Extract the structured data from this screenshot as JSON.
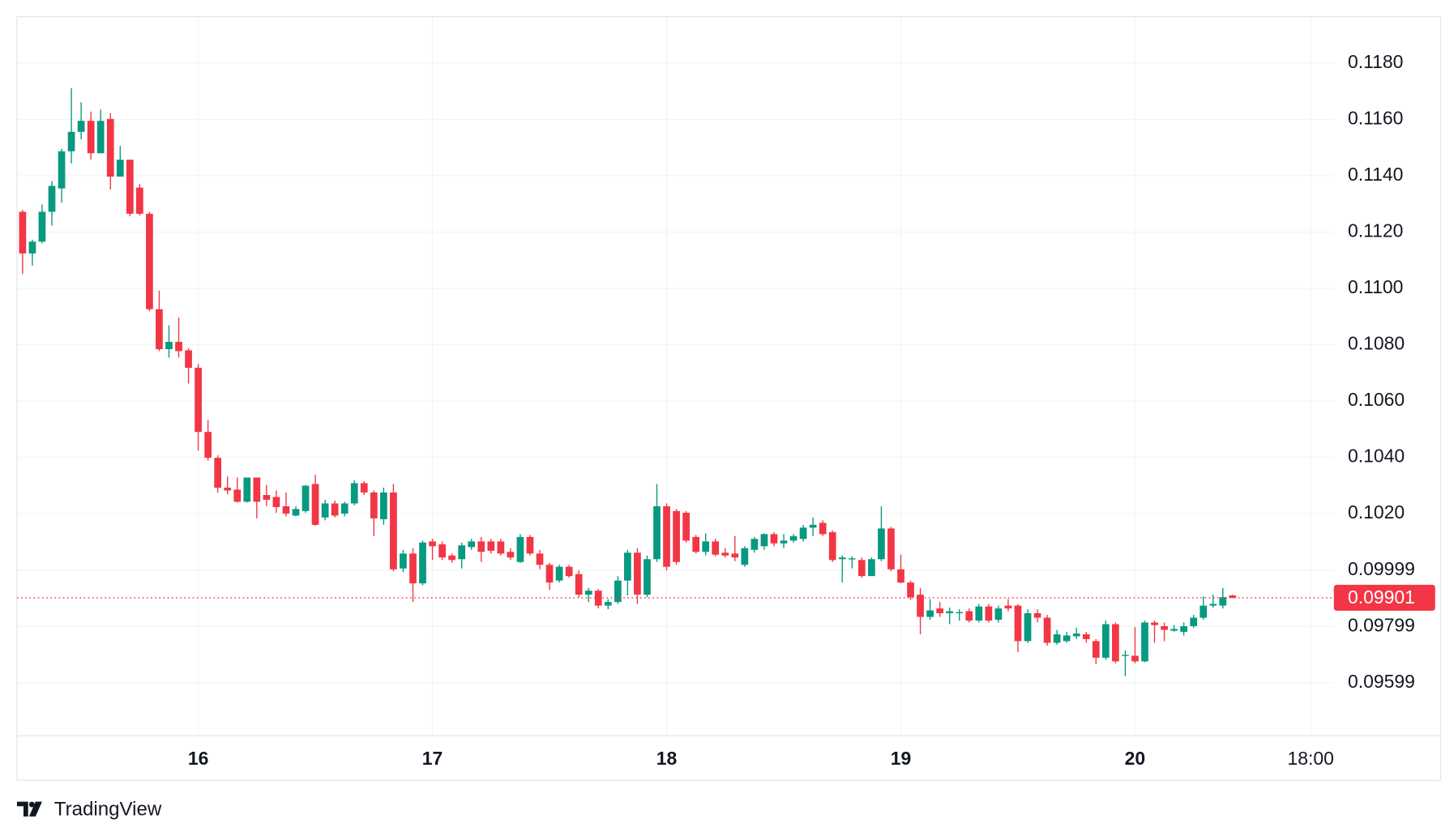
{
  "chart_data": {
    "type": "candlestick",
    "up_color": "#089981",
    "down_color": "#f23645",
    "x": [
      15.25,
      15.2917,
      15.3333,
      15.375,
      15.4167,
      15.4583,
      15.5,
      15.5417,
      15.5833,
      15.625,
      15.6667,
      15.7083,
      15.75,
      15.7917,
      15.8333,
      15.875,
      15.9167,
      15.9583,
      16,
      16.0417,
      16.0833,
      16.125,
      16.1667,
      16.2083,
      16.25,
      16.2917,
      16.3333,
      16.375,
      16.4167,
      16.4583,
      16.5,
      16.5417,
      16.5833,
      16.625,
      16.6667,
      16.7083,
      16.75,
      16.7917,
      16.8333,
      16.875,
      16.9167,
      16.9583,
      17,
      17.0417,
      17.0833,
      17.125,
      17.1667,
      17.2083,
      17.25,
      17.2917,
      17.3333,
      17.375,
      17.4167,
      17.4583,
      17.5,
      17.5417,
      17.5833,
      17.625,
      17.6667,
      17.7083,
      17.75,
      17.7917,
      17.8333,
      17.875,
      17.9167,
      17.9583,
      18,
      18.0417,
      18.0833,
      18.125,
      18.1667,
      18.2083,
      18.25,
      18.2917,
      18.3333,
      18.375,
      18.4167,
      18.4583,
      18.5,
      18.5417,
      18.5833,
      18.625,
      18.6667,
      18.7083,
      18.75,
      18.7917,
      18.8333,
      18.875,
      18.9167,
      18.9583,
      19,
      19.0417,
      19.0833,
      19.125,
      19.1667,
      19.2083,
      19.25,
      19.2917,
      19.3333,
      19.375,
      19.4167,
      19.4583,
      19.5,
      19.5417,
      19.5833,
      19.625,
      19.6667,
      19.7083,
      19.75,
      19.7917,
      19.8333,
      19.875,
      19.9167,
      19.9583,
      20,
      20.0417,
      20.0833,
      20.125,
      20.1667,
      20.2083,
      20.25,
      20.2917,
      20.3333,
      20.375,
      20.4167
    ],
    "open": [
      0.11272,
      0.11124,
      0.11166,
      0.11272,
      0.11355,
      0.11487,
      0.11556,
      0.11595,
      0.1148,
      0.11602,
      0.11397,
      0.11457,
      0.11358,
      0.11265,
      0.10926,
      0.10784,
      0.1081,
      0.1078,
      0.10718,
      0.1049,
      0.10398,
      0.10292,
      0.10285,
      0.10242,
      0.10328,
      0.10266,
      0.10259,
      0.10226,
      0.10193,
      0.10209,
      0.10305,
      0.10186,
      0.10236,
      0.102,
      0.10236,
      0.10308,
      0.10275,
      0.1018,
      0.10275,
      0.10005,
      0.10058,
      0.09952,
      0.10101,
      0.10091,
      0.10051,
      0.10038,
      0.10081,
      0.10101,
      0.10101,
      0.10101,
      0.10064,
      0.10028,
      0.10117,
      0.10058,
      0.10018,
      0.09962,
      0.10011,
      0.09985,
      0.09912,
      0.09926,
      0.09873,
      0.09886,
      0.09962,
      0.10061,
      0.09912,
      0.10038,
      0.10226,
      0.10209,
      0.10203,
      0.10117,
      0.10064,
      0.10101,
      0.10061,
      0.10058,
      0.10018,
      0.10071,
      0.10084,
      0.10127,
      0.10094,
      0.10104,
      0.1011,
      0.1015,
      0.10167,
      0.10134,
      0.10038,
      0.10038,
      0.10035,
      0.09978,
      0.10038,
      0.10147,
      0.10002,
      0.09955,
      0.09912,
      0.09833,
      0.09863,
      0.09846,
      0.09846,
      0.09853,
      0.0982,
      0.0987,
      0.09823,
      0.09873,
      0.09873,
      0.09747,
      0.09846,
      0.0983,
      0.09741,
      0.09747,
      0.09764,
      0.09771,
      0.09747,
      0.09688,
      0.09807,
      0.09695,
      0.09695,
      0.09675,
      0.09813,
      0.098,
      0.09784,
      0.0978,
      0.098,
      0.0983,
      0.09873,
      0.09873,
      0.09909
    ],
    "high": [
      0.11279,
      0.11173,
      0.11298,
      0.11381,
      0.11496,
      0.11711,
      0.11661,
      0.11628,
      0.11635,
      0.11622,
      0.11506,
      0.11457,
      0.11371,
      0.11272,
      0.10992,
      0.10869,
      0.10896,
      0.10787,
      0.10731,
      0.10533,
      0.10407,
      0.10332,
      0.10328,
      0.10328,
      0.10328,
      0.10302,
      0.10282,
      0.10275,
      0.10226,
      0.10302,
      0.10338,
      0.10249,
      0.10246,
      0.10242,
      0.10318,
      0.10315,
      0.10282,
      0.10292,
      0.10305,
      0.10071,
      0.10077,
      0.10104,
      0.1011,
      0.10101,
      0.10058,
      0.10097,
      0.1011,
      0.10117,
      0.1011,
      0.1011,
      0.10077,
      0.10127,
      0.10124,
      0.10071,
      0.10025,
      0.10018,
      0.10018,
      0.09998,
      0.09936,
      0.09932,
      0.09896,
      0.09978,
      0.10071,
      0.10077,
      0.10051,
      0.10305,
      0.10236,
      0.10216,
      0.10209,
      0.10124,
      0.1013,
      0.1011,
      0.10077,
      0.1012,
      0.10084,
      0.10117,
      0.1013,
      0.10134,
      0.10127,
      0.10127,
      0.1016,
      0.10186,
      0.10176,
      0.1014,
      0.10051,
      0.10048,
      0.10044,
      0.10044,
      0.10226,
      0.10153,
      0.10054,
      0.09962,
      0.09936,
      0.09896,
      0.09886,
      0.09866,
      0.0986,
      0.09863,
      0.09879,
      0.09879,
      0.09873,
      0.09896,
      0.09879,
      0.0986,
      0.0986,
      0.0984,
      0.09787,
      0.0978,
      0.09794,
      0.0978,
      0.09754,
      0.0982,
      0.09813,
      0.09714,
      0.09797,
      0.0982,
      0.0982,
      0.09813,
      0.09804,
      0.09813,
      0.0984,
      0.09906,
      0.09912,
      0.09936,
      0.09912
    ],
    "low": [
      0.11051,
      0.11081,
      0.1116,
      0.11223,
      0.11305,
      0.11444,
      0.11529,
      0.11457,
      0.1148,
      0.11351,
      0.11397,
      0.11256,
      0.11259,
      0.10919,
      0.10777,
      0.10754,
      0.10754,
      0.10662,
      0.10424,
      0.10388,
      0.10275,
      0.10269,
      0.10239,
      0.10239,
      0.10183,
      0.10226,
      0.10203,
      0.1019,
      0.1019,
      0.10203,
      0.10157,
      0.10176,
      0.10186,
      0.1019,
      0.10229,
      0.10266,
      0.1012,
      0.1016,
      0.09995,
      0.09992,
      0.09886,
      0.09945,
      0.10035,
      0.10035,
      0.10025,
      0.10005,
      0.10071,
      0.10028,
      0.10058,
      0.10051,
      0.10035,
      0.10025,
      0.10051,
      0.10002,
      0.09929,
      0.09955,
      0.09972,
      0.09903,
      0.09886,
      0.09863,
      0.0986,
      0.09879,
      0.09909,
      0.09879,
      0.09903,
      0.10028,
      0.09998,
      0.10018,
      0.10097,
      0.10058,
      0.10051,
      0.10048,
      0.10044,
      0.10031,
      0.10011,
      0.10061,
      0.10071,
      0.10084,
      0.10077,
      0.10097,
      0.10101,
      0.1012,
      0.1012,
      0.10028,
      0.09955,
      0.10005,
      0.09972,
      0.09978,
      0.10031,
      0.09995,
      0.09952,
      0.09893,
      0.09771,
      0.09823,
      0.09833,
      0.09807,
      0.0982,
      0.09813,
      0.09813,
      0.09813,
      0.09813,
      0.09853,
      0.09708,
      0.09741,
      0.09813,
      0.09731,
      0.09734,
      0.09741,
      0.09754,
      0.09741,
      0.09665,
      0.09681,
      0.09668,
      0.09622,
      0.09668,
      0.09672,
      0.09741,
      0.09747,
      0.0978,
      0.09767,
      0.09794,
      0.09823,
      0.09866,
      0.09863,
      0.09899
    ],
    "close": [
      0.11124,
      0.11166,
      0.11272,
      0.11364,
      0.11487,
      0.11556,
      0.11595,
      0.1148,
      0.11595,
      0.11397,
      0.11457,
      0.11265,
      0.11265,
      0.10926,
      0.10784,
      0.1081,
      0.10777,
      0.10718,
      0.1049,
      0.10398,
      0.10292,
      0.10282,
      0.10242,
      0.10328,
      0.10242,
      0.10249,
      0.10223,
      0.102,
      0.10216,
      0.10299,
      0.1016,
      0.10236,
      0.10193,
      0.10236,
      0.10308,
      0.10275,
      0.10183,
      0.10275,
      0.10002,
      0.10058,
      0.09952,
      0.10097,
      0.10084,
      0.10044,
      0.10035,
      0.10087,
      0.10101,
      0.10064,
      0.10068,
      0.10058,
      0.10044,
      0.10117,
      0.10058,
      0.10018,
      0.09955,
      0.10011,
      0.09978,
      0.09912,
      0.09926,
      0.09873,
      0.09886,
      0.09962,
      0.10061,
      0.09912,
      0.10038,
      0.10226,
      0.10011,
      0.10028,
      0.10104,
      0.10064,
      0.10101,
      0.10054,
      0.10051,
      0.10044,
      0.10077,
      0.1011,
      0.10127,
      0.10094,
      0.10104,
      0.1012,
      0.1015,
      0.1016,
      0.10127,
      0.10035,
      0.10044,
      0.10041,
      0.09978,
      0.10038,
      0.10147,
      0.10002,
      0.09955,
      0.09903,
      0.09833,
      0.09856,
      0.09846,
      0.09853,
      0.0985,
      0.0982,
      0.0987,
      0.0982,
      0.09863,
      0.09863,
      0.09747,
      0.09846,
      0.0983,
      0.09741,
      0.09771,
      0.09767,
      0.09774,
      0.09754,
      0.09688,
      0.09807,
      0.09675,
      0.09698,
      0.09675,
      0.09813,
      0.09804,
      0.09787,
      0.0979,
      0.098,
      0.0983,
      0.09873,
      0.09879,
      0.09903,
      0.09901
    ],
    "last_price": 0.09901,
    "xlim": [
      15.226,
      20.849
    ],
    "ylim": [
      0.09411,
      0.11965
    ],
    "xticks": [
      16,
      17,
      18,
      19,
      20,
      {
        "value": 20.75,
        "label": "18:00"
      }
    ],
    "yticks": [
      {
        "value": 0.118,
        "label": "0.1180"
      },
      {
        "value": 0.116,
        "label": "0.1160"
      },
      {
        "value": 0.114,
        "label": "0.1140"
      },
      {
        "value": 0.112,
        "label": "0.1120"
      },
      {
        "value": 0.11,
        "label": "0.1100"
      },
      {
        "value": 0.108,
        "label": "0.1080"
      },
      {
        "value": 0.106,
        "label": "0.1060"
      },
      {
        "value": 0.104,
        "label": "0.1040"
      },
      {
        "value": 0.102,
        "label": "0.1020"
      },
      0.09999,
      0.09799,
      0.09599
    ],
    "grid": true,
    "branding": "TradingView"
  }
}
